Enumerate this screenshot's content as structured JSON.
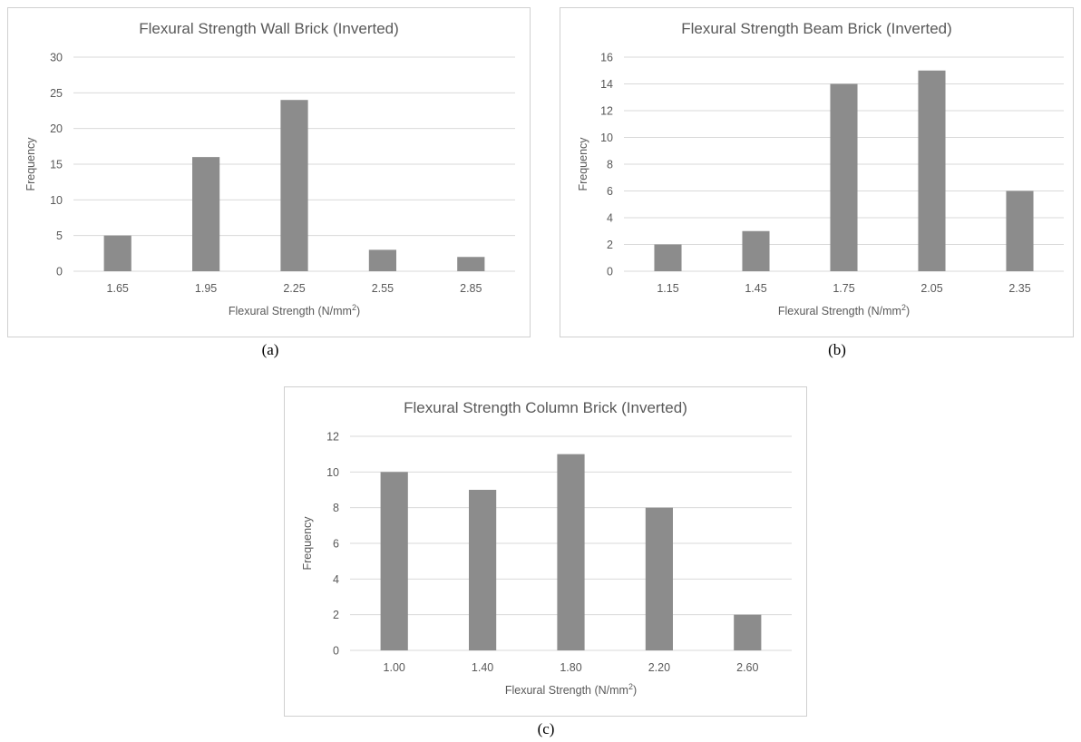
{
  "chart_data": [
    {
      "id": "a",
      "type": "bar",
      "title": "Flexural Strength Wall Brick (Inverted)",
      "xlabel": "Flexural Strength (N/mm",
      "xlabel_sup": "2",
      "xlabel_end": ")",
      "ylabel": "Frequency",
      "categories": [
        "1.65",
        "1.95",
        "2.25",
        "2.55",
        "2.85"
      ],
      "values": [
        5,
        16,
        24,
        3,
        2
      ],
      "ylim": [
        0,
        30
      ],
      "yticks": [
        0,
        5,
        10,
        15,
        20,
        25,
        30
      ],
      "grid": true,
      "legend": "none",
      "bar_color": "#8c8c8c",
      "caption": "(a)"
    },
    {
      "id": "b",
      "type": "bar",
      "title": "Flexural Strength Beam Brick (Inverted)",
      "xlabel": "Flexural Strength (N/mm",
      "xlabel_sup": "2",
      "xlabel_end": ")",
      "ylabel": "Frequency",
      "categories": [
        "1.15",
        "1.45",
        "1.75",
        "2.05",
        "2.35"
      ],
      "values": [
        2,
        3,
        14,
        15,
        6
      ],
      "ylim": [
        0,
        16
      ],
      "yticks": [
        0,
        2,
        4,
        6,
        8,
        10,
        12,
        14,
        16
      ],
      "grid": true,
      "legend": "none",
      "bar_color": "#8c8c8c",
      "caption": "(b)"
    },
    {
      "id": "c",
      "type": "bar",
      "title": "Flexural Strength Column Brick (Inverted)",
      "xlabel": "Flexural Strength (N/mm",
      "xlabel_sup": "2",
      "xlabel_end": ")",
      "ylabel": "Frequency",
      "categories": [
        "1.00",
        "1.40",
        "1.80",
        "2.20",
        "2.60"
      ],
      "values": [
        10,
        9,
        11,
        8,
        2
      ],
      "ylim": [
        0,
        12
      ],
      "yticks": [
        0,
        2,
        4,
        6,
        8,
        10,
        12
      ],
      "grid": true,
      "legend": "none",
      "bar_color": "#8c8c8c",
      "caption": "(c)"
    }
  ]
}
